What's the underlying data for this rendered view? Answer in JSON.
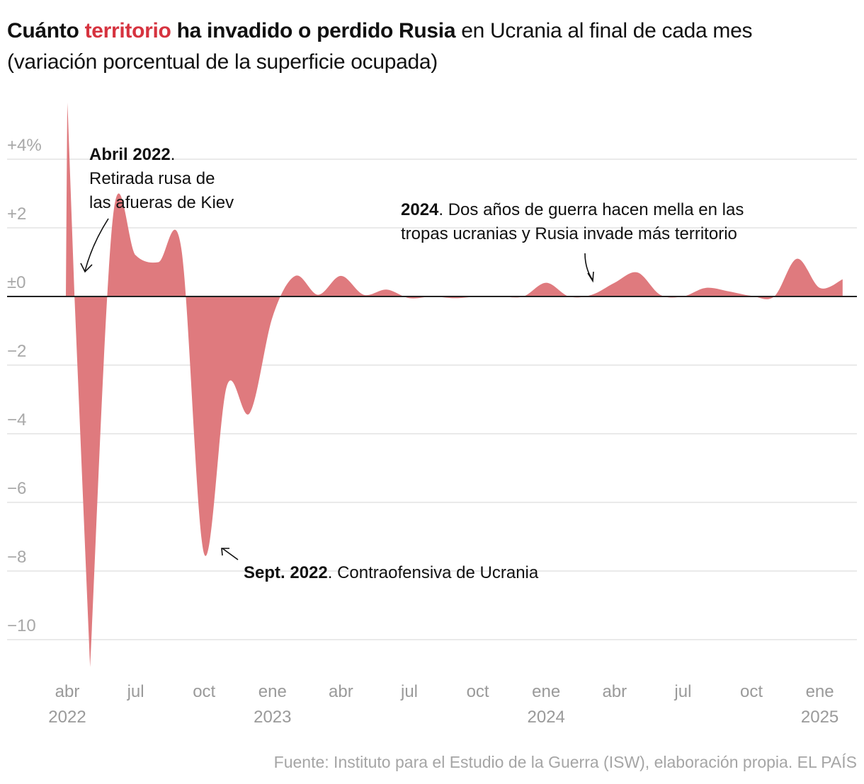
{
  "title": {
    "part1_bold": "Cuánto ",
    "part2_red_bold": "territorio",
    "part3_bold": " ha invadido o perdido Rusia",
    "part4": " en Ucrania al final de cada mes",
    "subtitle": "(variación porcentual de la superficie ocupada)"
  },
  "colors": {
    "area": "#df7a7e",
    "accent": "#d6333f",
    "zero_line": "#222222",
    "grid": "#e3e3e3"
  },
  "chart_data": {
    "type": "area",
    "title": "Cuánto territorio ha invadido o perdido Rusia en Ucrania al final de cada mes",
    "subtitle": "(variación porcentual de la superficie ocupada)",
    "x": [
      "2022-03",
      "2022-04",
      "2022-05",
      "2022-06",
      "2022-07",
      "2022-08",
      "2022-09",
      "2022-10",
      "2022-11",
      "2022-12",
      "2023-01",
      "2023-02",
      "2023-03",
      "2023-04",
      "2023-05",
      "2023-06",
      "2023-07",
      "2023-08",
      "2023-09",
      "2023-10",
      "2023-11",
      "2023-12",
      "2024-01",
      "2024-02",
      "2024-03",
      "2024-04",
      "2024-05",
      "2024-06",
      "2024-07",
      "2024-08",
      "2024-09",
      "2024-10",
      "2024-11",
      "2024-12",
      "2025-01"
    ],
    "values": [
      5.65,
      -10.8,
      2.3,
      1.2,
      1.0,
      1.4,
      -7.5,
      -2.6,
      -3.4,
      -0.6,
      0.6,
      0.05,
      0.6,
      0.05,
      0.2,
      -0.05,
      0,
      -0.05,
      0,
      0,
      0,
      0.4,
      0.0,
      0.05,
      0.4,
      0.7,
      0.05,
      0,
      0.25,
      0.15,
      0.02,
      0,
      1.1,
      0.25,
      0.5
    ],
    "ylim": [
      -11,
      5.7
    ],
    "yticks": [
      {
        "v": 4,
        "label": "+4%"
      },
      {
        "v": 2,
        "label": "+2"
      },
      {
        "v": 0,
        "label": "±0"
      },
      {
        "v": -2,
        "label": "−2"
      },
      {
        "v": -4,
        "label": "−4"
      },
      {
        "v": -6,
        "label": "−6"
      },
      {
        "v": -8,
        "label": "−8"
      },
      {
        "v": -10,
        "label": "−10"
      }
    ],
    "xticks": [
      {
        "month": "abr",
        "year": "2022"
      },
      {
        "month": "jul",
        "year": ""
      },
      {
        "month": "oct",
        "year": ""
      },
      {
        "month": "ene",
        "year": "2023"
      },
      {
        "month": "abr",
        "year": ""
      },
      {
        "month": "jul",
        "year": ""
      },
      {
        "month": "oct",
        "year": ""
      },
      {
        "month": "ene",
        "year": "2024"
      },
      {
        "month": "abr",
        "year": ""
      },
      {
        "month": "jul",
        "year": ""
      },
      {
        "month": "oct",
        "year": ""
      },
      {
        "month": "ene",
        "year": "2025"
      }
    ],
    "grid": true,
    "annotations": [
      {
        "bold": "Abril 2022",
        "text_lines": [
          ". ",
          "Retirada rusa de",
          "las afueras de Kiev"
        ]
      },
      {
        "bold": "Sept. 2022",
        "text": ". Contraofensiva de Ucrania"
      },
      {
        "bold": "2024",
        "text": ". Dos años de guerra hacen mella en las",
        "text2": "tropas ucranias y Rusia invade más territorio"
      }
    ]
  },
  "source": "Fuente: Instituto para el Estudio de la Guerra (ISW), elaboración propia. EL PAÍS"
}
